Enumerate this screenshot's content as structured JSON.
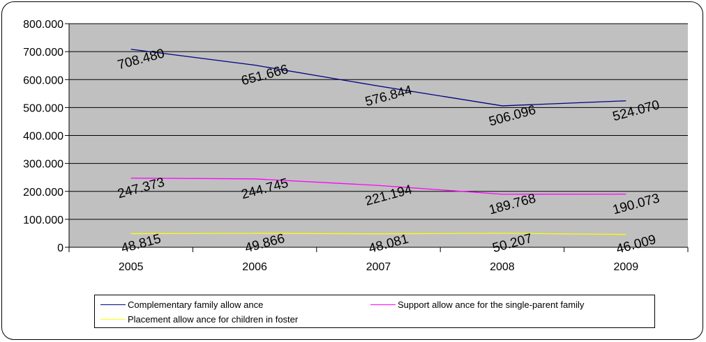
{
  "chart_data": {
    "type": "line",
    "categories": [
      "2005",
      "2006",
      "2007",
      "2008",
      "2009"
    ],
    "series": [
      {
        "name": "Complementary family allow ance",
        "values": [
          708480,
          651666,
          576844,
          506096,
          524070
        ],
        "labels": [
          "708.480",
          "651.666",
          "576.844",
          "506.096",
          "524.070"
        ],
        "color": "#000080"
      },
      {
        "name": "Support allow ance for the single-parent family",
        "values": [
          247373,
          244745,
          221194,
          189768,
          190073
        ],
        "labels": [
          "247.373",
          "244.745",
          "221.194",
          "189.768",
          "190.073"
        ],
        "color": "#ff00ff"
      },
      {
        "name": "Placement allow ance for children in foster",
        "values": [
          48815,
          49866,
          48081,
          50207,
          46009
        ],
        "labels": [
          "48.815",
          "49.866",
          "48.081",
          "50.207",
          "46.009"
        ],
        "color": "#ffff00"
      }
    ],
    "ylim": [
      0,
      800000
    ],
    "y_ticks": [
      {
        "value": 0,
        "label": "0"
      },
      {
        "value": 100000,
        "label": "100.000"
      },
      {
        "value": 200000,
        "label": "200.000"
      },
      {
        "value": 300000,
        "label": "300.000"
      },
      {
        "value": 400000,
        "label": "400.000"
      },
      {
        "value": 500000,
        "label": "500.000"
      },
      {
        "value": 600000,
        "label": "600.000"
      },
      {
        "value": 700000,
        "label": "700.000"
      },
      {
        "value": 800000,
        "label": "800.000"
      }
    ],
    "title": "",
    "xlabel": "",
    "ylabel": "",
    "grid": true,
    "plot_background": "#c0c0c0",
    "legend_position": "bottom"
  }
}
